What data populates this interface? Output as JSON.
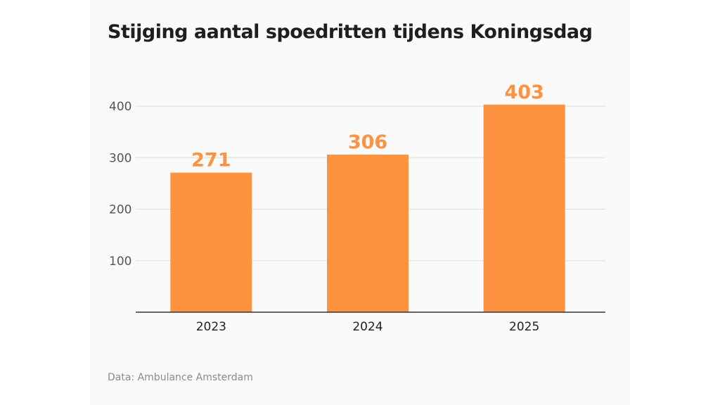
{
  "chart_data": {
    "type": "bar",
    "title": "Stijging aantal spoedritten tijdens Koningsdag",
    "categories": [
      "2023",
      "2024",
      "2025"
    ],
    "values": [
      271,
      306,
      403
    ],
    "data_labels": [
      "271",
      "306",
      "403"
    ],
    "yticks": [
      100,
      200,
      300,
      400
    ],
    "ytick_labels": [
      "100",
      "200",
      "300",
      "400"
    ],
    "ylim": [
      0,
      400
    ],
    "xlabel": "",
    "ylabel": "",
    "grid": true,
    "bar_color": "#fd9341",
    "source": "Data: Ambulance Amsterdam"
  }
}
